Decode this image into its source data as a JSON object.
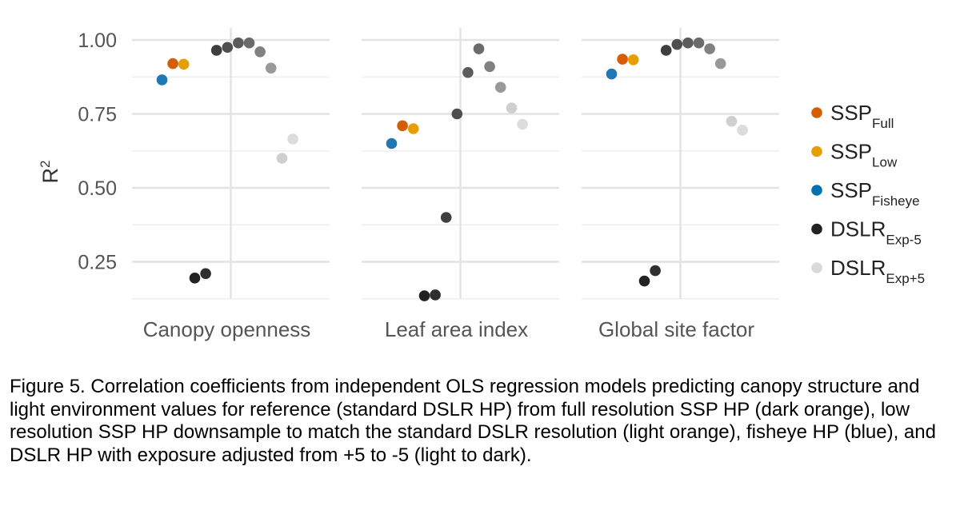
{
  "chart_data": {
    "type": "scatter",
    "ylabel_base": "R",
    "ylabel_sup": "2",
    "yticks": [
      "1.00",
      "0.75",
      "0.50",
      "0.25"
    ],
    "ytick_values": [
      1.0,
      0.75,
      0.5,
      0.25
    ],
    "ylim": [
      0.125,
      1.04
    ],
    "grid": true,
    "legend_position": "right",
    "panels": [
      "Canopy openness",
      "Leaf area index",
      "Global site factor"
    ],
    "legend": [
      {
        "base": "SSP",
        "sub": "Full",
        "color": "#d55e00"
      },
      {
        "base": "SSP",
        "sub": "Low",
        "color": "#e69f00"
      },
      {
        "base": "SSP",
        "sub": "Fisheye",
        "color": "#0072b2"
      },
      {
        "base": "DSLR",
        "sub": "Exp-5",
        "color": "#222222"
      },
      {
        "base": "DSLR",
        "sub": "Exp+5",
        "color": "#d9d9d9"
      }
    ],
    "series": [
      {
        "key": "ssp_fisheye",
        "color": "#1f77b4",
        "values": [
          0.865,
          0.65,
          0.885
        ]
      },
      {
        "key": "ssp_full",
        "color": "#d55e00",
        "values": [
          0.92,
          0.71,
          0.935
        ]
      },
      {
        "key": "ssp_low",
        "color": "#e69f00",
        "values": [
          0.918,
          0.7,
          0.933
        ]
      },
      {
        "key": "dslr_exp_m5",
        "color": "#222222",
        "values": [
          0.195,
          0.135,
          0.185
        ]
      },
      {
        "key": "dslr_exp_m4",
        "color": "#2f2f2f",
        "values": [
          0.21,
          0.138,
          0.22
        ]
      },
      {
        "key": "dslr_exp_m3",
        "color": "#3f3f3f",
        "values": [
          0.965,
          0.4,
          0.965
        ]
      },
      {
        "key": "dslr_exp_m2",
        "color": "#4e4e4e",
        "values": [
          0.975,
          0.75,
          0.985
        ]
      },
      {
        "key": "dslr_exp_m1",
        "color": "#5c5c5c",
        "values": [
          0.99,
          0.89,
          0.99
        ]
      },
      {
        "key": "dslr_exp_p1",
        "color": "#6b6b6b",
        "values": [
          0.99,
          0.97,
          0.99
        ]
      },
      {
        "key": "dslr_exp_p2",
        "color": "#818181",
        "values": [
          0.96,
          0.91,
          0.97
        ]
      },
      {
        "key": "dslr_exp_p3",
        "color": "#999999",
        "values": [
          0.905,
          0.84,
          0.92
        ]
      },
      {
        "key": "dslr_exp_p4",
        "color": "#cfcfcf",
        "values": [
          0.6,
          0.77,
          0.725
        ]
      },
      {
        "key": "dslr_exp_p5",
        "color": "#dcdcdc",
        "values": [
          0.665,
          0.715,
          0.695
        ]
      }
    ]
  },
  "caption": "Figure 5. Correlation coefficients from independent OLS regression models predicting canopy structure and light environment values for reference (standard DSLR HP) from full resolution SSP HP (dark orange), low resolution SSP HP downsample to match the standard DSLR resolution (light orange), fisheye HP (blue), and DSLR HP with exposure adjusted from +5 to -5 (light to dark)."
}
